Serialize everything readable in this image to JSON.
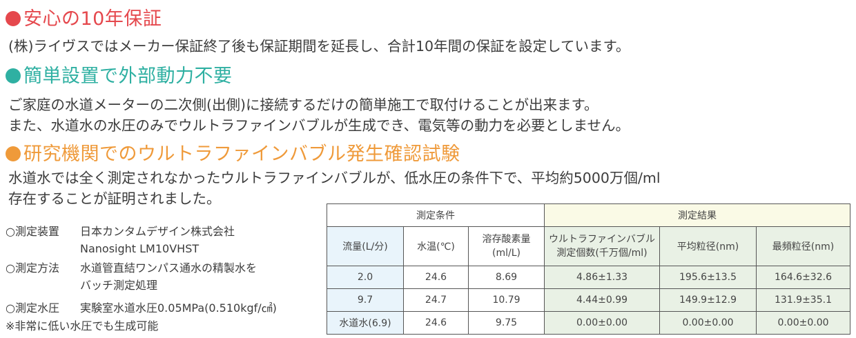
{
  "colors": {
    "section1": "#e5484d",
    "section2": "#2fb0a2",
    "section3": "#ef9a3a",
    "text": "#3c3c3c"
  },
  "sections": [
    {
      "title": "安心の10年保証",
      "lines": [
        "(株)ライヴスではメーカー保証終了後も保証期間を延長し、合計10年間の保証を設定しています。"
      ]
    },
    {
      "title": "簡単設置で外部動力不要",
      "lines": [
        "ご家庭の水道メーターの二次側(出側)に接続するだけの簡単施工で取付けることが出来ます。",
        "また、水道水の水圧のみでウルトラファインバブルが生成でき、電気等の動力を必要としません。"
      ]
    },
    {
      "title": "研究機関でのウルトラファインバブル発生確認試験",
      "lines": [
        "水道水では全く測定されなかったウルトラファインバブルが、低水圧の条件下で、平均約5000万個/ml",
        "存在することが証明されました。"
      ]
    }
  ],
  "test_info": [
    {
      "label": "○測定装置",
      "value": "日本カンタムデザイン株式会社",
      "value2": "Nanosight LM10VHST"
    },
    {
      "label": "○測定方法",
      "value": "水道管直結ワンパス通水の精製水を",
      "value2": "バッチ測定処理"
    },
    {
      "label": "○測定水圧",
      "value": "実験室水道水圧0.05MPa(0.510kgf/㎠)"
    }
  ],
  "note": "※非常に低い水圧でも生成可能",
  "table": {
    "group_headers": [
      "測定条件",
      "測定結果"
    ],
    "columns": [
      "流量(L/分)",
      "水温(℃)",
      "溶存酸素量\n(ml/L)",
      "ウルトラファインバブル\n測定個数(千万個/ml)",
      "平均粒径(nm)",
      "最頻粒径(nm)"
    ],
    "rows": [
      [
        "2.0",
        "24.6",
        "8.69",
        "4.86±1.33",
        "195.6±13.5",
        "164.6±32.6"
      ],
      [
        "9.7",
        "24.7",
        "10.79",
        "4.44±0.99",
        "149.9±12.9",
        "131.9±35.1"
      ],
      [
        "水道水(6.9)",
        "24.6",
        "9.75",
        "0.00±0.00",
        "0.00±0.00",
        "0.00±0.00"
      ]
    ]
  }
}
